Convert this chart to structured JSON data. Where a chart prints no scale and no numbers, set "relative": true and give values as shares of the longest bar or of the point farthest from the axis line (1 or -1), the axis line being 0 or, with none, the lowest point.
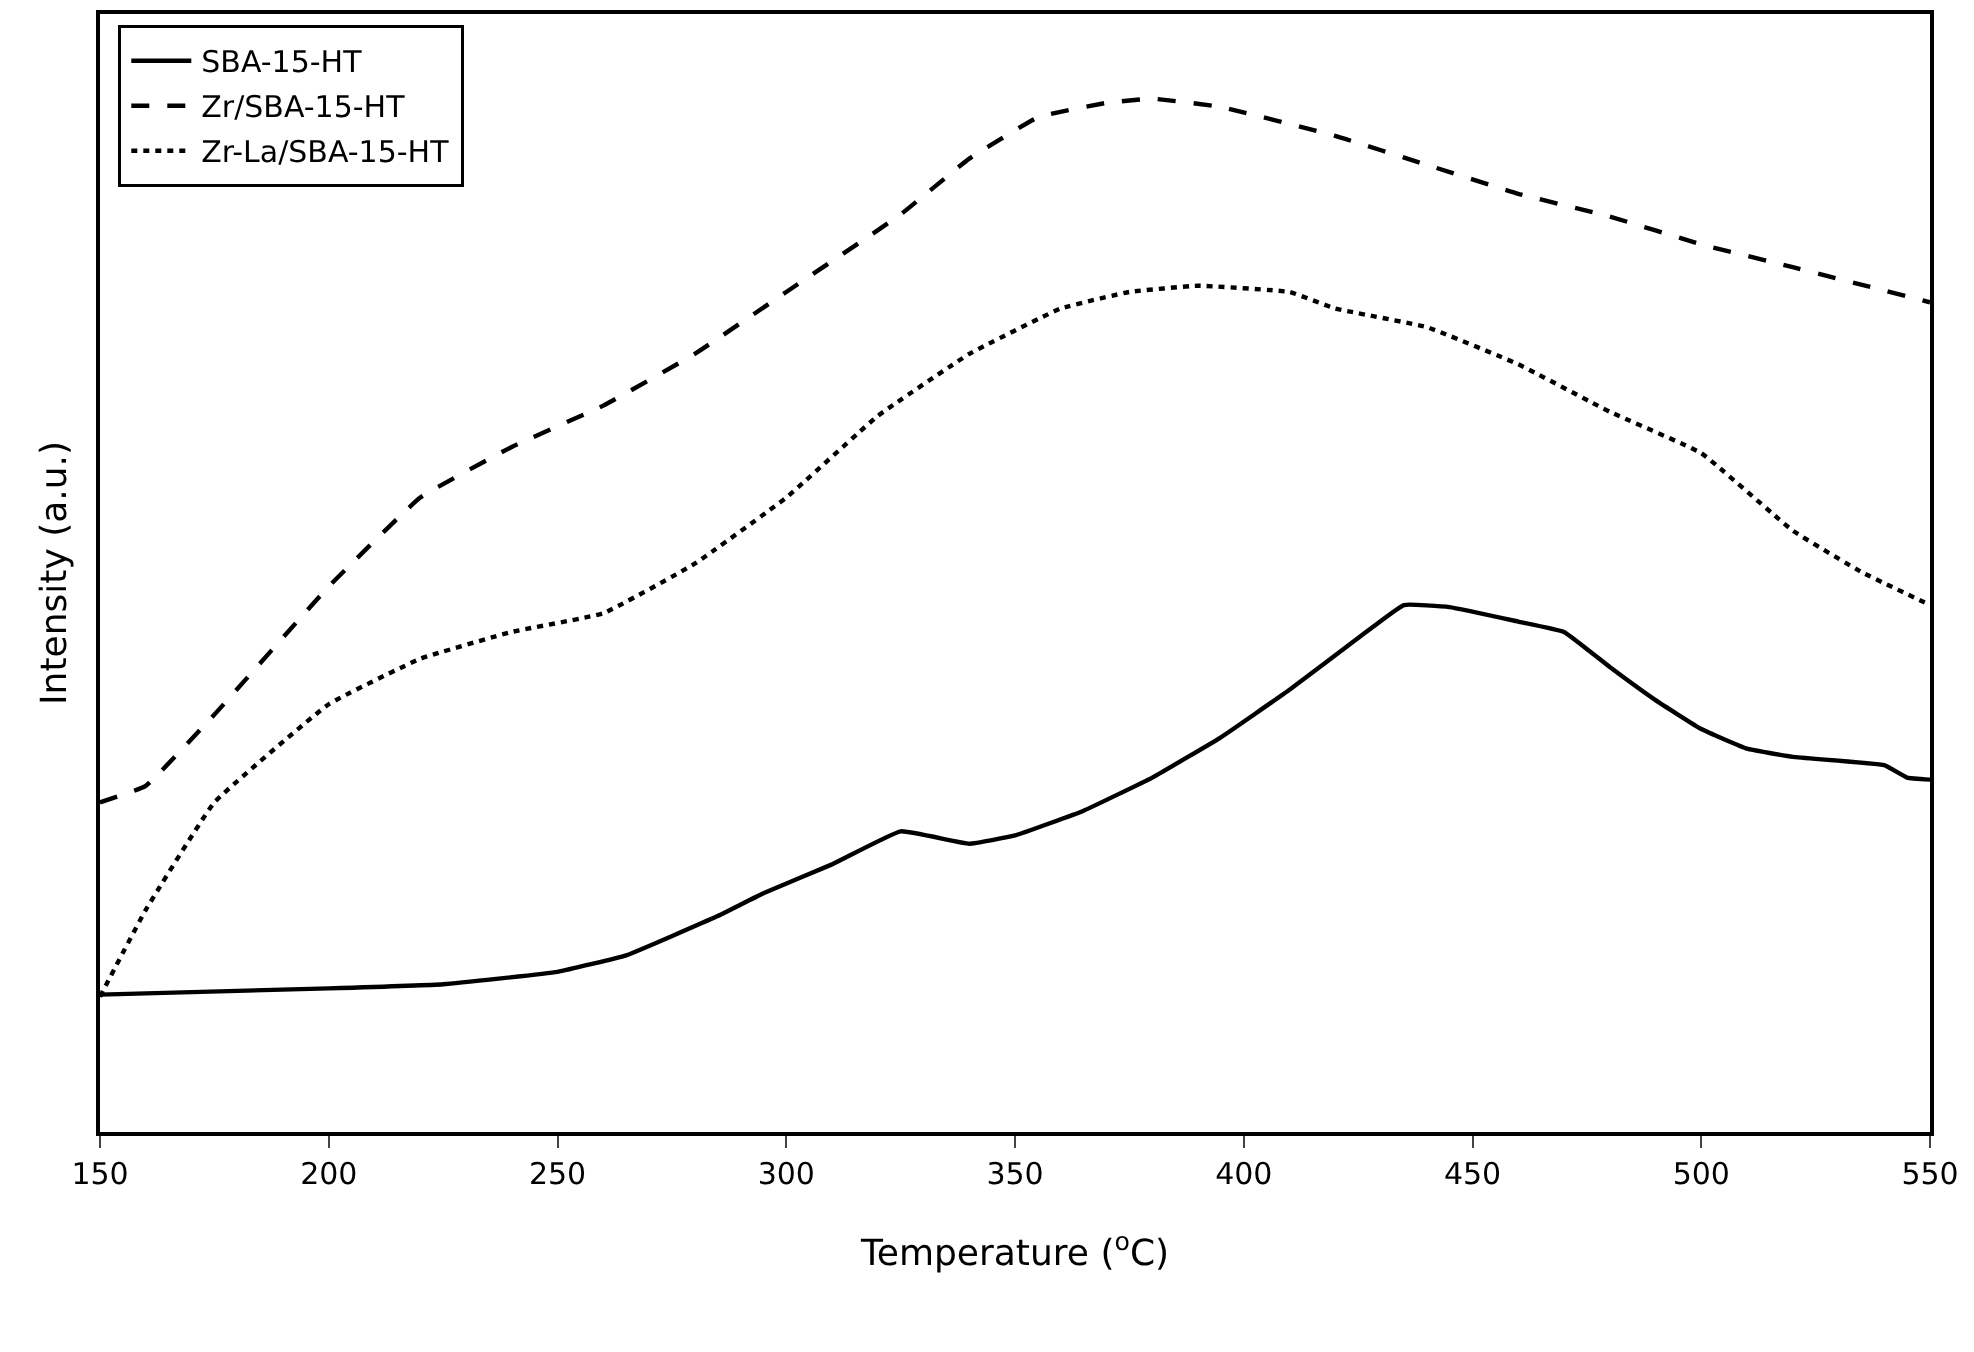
{
  "chart_data": {
    "type": "line",
    "relative": true,
    "xlabel": "Temperature ($^{o}$C)",
    "ylabel": "Intensity (a.u.)",
    "xlim": [
      150,
      550
    ],
    "xticks": [
      150,
      200,
      250,
      300,
      350,
      400,
      450,
      500,
      550
    ],
    "legend": "top left",
    "tick_labels": "x",
    "series": [
      {
        "name": "SBA-15-HT",
        "color": "#000000",
        "line_style": "solid",
        "x": [
          150,
          200,
          225,
          250,
          265,
          285,
          295,
          310,
          325,
          340,
          350,
          365,
          380,
          395,
          410,
          425,
          435,
          445,
          460,
          470,
          480,
          490,
          500,
          510,
          520,
          540,
          545,
          550
        ],
        "values": [
          0.133,
          0.139,
          0.143,
          0.155,
          0.171,
          0.209,
          0.231,
          0.259,
          0.291,
          0.279,
          0.287,
          0.311,
          0.343,
          0.382,
          0.428,
          0.478,
          0.51,
          0.508,
          0.494,
          0.484,
          0.45,
          0.418,
          0.39,
          0.371,
          0.363,
          0.355,
          0.343,
          0.341
        ]
      },
      {
        "name": "Zr/SBA-15-HT",
        "color": "#000000",
        "line_style": "dashed",
        "x": [
          150,
          160,
          175,
          200,
          220,
          240,
          260,
          280,
          300,
          325,
          340,
          355,
          370,
          380,
          395,
          420,
          440,
          460,
          480,
          500,
          520,
          550
        ],
        "values": [
          0.319,
          0.335,
          0.404,
          0.528,
          0.614,
          0.663,
          0.703,
          0.753,
          0.813,
          0.888,
          0.942,
          0.982,
          0.996,
          1.0,
          0.992,
          0.964,
          0.936,
          0.908,
          0.886,
          0.859,
          0.837,
          0.803
        ]
      },
      {
        "name": "Zr-La/SBA-15-HT",
        "color": "#000000",
        "line_style": "dotted",
        "x": [
          150,
          160,
          175,
          200,
          220,
          240,
          260,
          280,
          300,
          320,
          340,
          360,
          375,
          390,
          410,
          420,
          440,
          460,
          480,
          500,
          520,
          535,
          550
        ],
        "values": [
          0.131,
          0.215,
          0.319,
          0.414,
          0.458,
          0.484,
          0.502,
          0.55,
          0.614,
          0.693,
          0.753,
          0.797,
          0.813,
          0.819,
          0.813,
          0.797,
          0.779,
          0.743,
          0.697,
          0.657,
          0.582,
          0.542,
          0.51
        ]
      }
    ]
  }
}
